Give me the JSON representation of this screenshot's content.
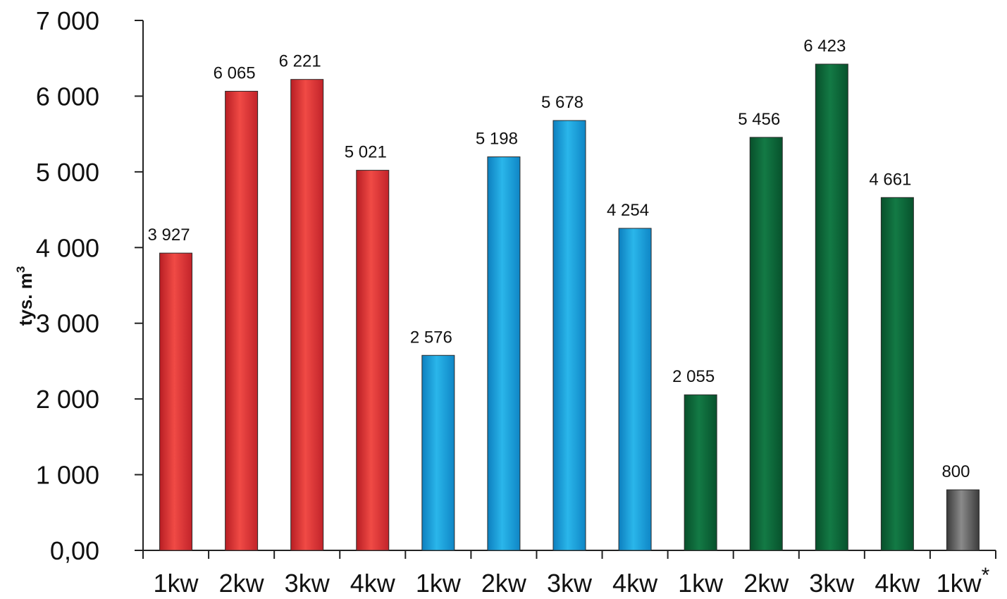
{
  "chart_data": {
    "type": "bar",
    "ylabel": "tys. m",
    "ylabel_superscript": "3",
    "xlabel": "",
    "ylim": [
      0,
      7000
    ],
    "yticks": [
      0,
      1000,
      2000,
      3000,
      4000,
      5000,
      6000,
      7000
    ],
    "ytick_labels": [
      "0,00",
      "1 000",
      "2 000",
      "3 000",
      "4 000",
      "5 000",
      "6 000",
      "7 000"
    ],
    "grid": false,
    "legend": "none",
    "categories": [
      "1kw",
      "2kw",
      "3kw",
      "4kw",
      "1kw",
      "2kw",
      "3kw",
      "4kw",
      "1kw",
      "2kw",
      "3kw",
      "4kw",
      "1kw*"
    ],
    "values": [
      3927,
      6065,
      6221,
      5021,
      2576,
      5198,
      5678,
      4254,
      2055,
      5456,
      6423,
      4661,
      800
    ],
    "value_labels": [
      "3 927",
      "6 065",
      "6 221",
      "5 021",
      "2 576",
      "5 198",
      "5 678",
      "4 254",
      "2 055",
      "5 456",
      "6 423",
      "4 661",
      "800"
    ],
    "bar_colors": [
      "#d92b2f",
      "#d92b2f",
      "#d92b2f",
      "#d92b2f",
      "#1a9ad6",
      "#1a9ad6",
      "#1a9ad6",
      "#1a9ad6",
      "#0b6b3a",
      "#0b6b3a",
      "#0b6b3a",
      "#0b6b3a",
      "#555555"
    ]
  }
}
